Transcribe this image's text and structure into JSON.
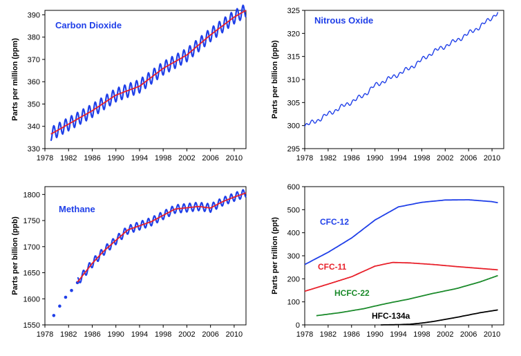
{
  "chart_data": [
    {
      "type": "line",
      "title": "Carbon Dioxide",
      "xlabel": "",
      "ylabel": "Parts per million (ppm)",
      "xlim": [
        1978,
        2012
      ],
      "ylim": [
        330,
        392
      ],
      "x_ticks": [
        1978,
        1982,
        1986,
        1990,
        1994,
        1998,
        2002,
        2006,
        2010
      ],
      "x_tick_labels": [
        "1978",
        "1982",
        "1986",
        "1990",
        "1994",
        "1998",
        "2002",
        "2006",
        "2010"
      ],
      "y_ticks": [
        330,
        340,
        350,
        360,
        370,
        380,
        390
      ],
      "y_tick_labels": [
        "330",
        "340",
        "350",
        "360",
        "370",
        "380",
        "390"
      ],
      "grid": false,
      "colors": {
        "monthly": "#1f3fe8",
        "trend": "#e8202a",
        "title": "#1f3fe8"
      },
      "seasonal_amplitude": 3,
      "series": [
        {
          "style": "monthly",
          "x": [
            1979,
            1982,
            1986,
            1990,
            1994,
            1998,
            2002,
            2006,
            2010,
            2012
          ],
          "y": [
            336.5,
            341,
            347,
            354,
            358,
            366,
            372,
            381,
            389,
            392
          ]
        },
        {
          "style": "trend",
          "x": [
            1979,
            1982,
            1986,
            1990,
            1994,
            1998,
            2002,
            2006,
            2010,
            2012
          ],
          "y": [
            336.5,
            341,
            347,
            354,
            358,
            366,
            372,
            381,
            389,
            392
          ]
        }
      ]
    },
    {
      "type": "line",
      "title": "Nitrous Oxide",
      "xlabel": "",
      "ylabel": "Parts per billion (ppb)",
      "xlim": [
        1978,
        2012
      ],
      "ylim": [
        295,
        325
      ],
      "x_ticks": [
        1978,
        1982,
        1986,
        1990,
        1994,
        1998,
        2002,
        2006,
        2010
      ],
      "x_tick_labels": [
        "1978",
        "1982",
        "1986",
        "1990",
        "1994",
        "1998",
        "2002",
        "2006",
        "2010"
      ],
      "y_ticks": [
        295,
        300,
        305,
        310,
        315,
        320,
        325
      ],
      "y_tick_labels": [
        "295",
        "300",
        "305",
        "310",
        "315",
        "320",
        "325"
      ],
      "grid": false,
      "colors": {
        "line": "#1f3fe8",
        "title": "#1f3fe8"
      },
      "series": [
        {
          "x": [
            1978,
            1980,
            1982,
            1985,
            1988,
            1990,
            1993,
            1996,
            2000,
            2004,
            2008,
            2011
          ],
          "y": [
            300,
            301,
            302.5,
            304.5,
            306.5,
            308.7,
            310.5,
            312.5,
            316,
            318.5,
            321.5,
            324.5
          ]
        }
      ]
    },
    {
      "type": "line",
      "title": "Methane",
      "xlabel": "",
      "ylabel": "Parts per billion (ppb)",
      "xlim": [
        1978,
        2012
      ],
      "ylim": [
        1550,
        1815
      ],
      "x_ticks": [
        1978,
        1982,
        1986,
        1990,
        1994,
        1998,
        2002,
        2006,
        2010
      ],
      "x_tick_labels": [
        "1978",
        "1982",
        "1986",
        "1990",
        "1994",
        "1998",
        "2002",
        "2006",
        "2010"
      ],
      "y_ticks": [
        1550,
        1600,
        1650,
        1700,
        1750,
        1800
      ],
      "y_tick_labels": [
        "1550",
        "1600",
        "1650",
        "1700",
        "1750",
        "1800"
      ],
      "grid": false,
      "colors": {
        "monthly": "#1f3fe8",
        "trend": "#e8202a",
        "points": "#1f3fe8",
        "title": "#1f3fe8"
      },
      "seasonal_amplitude": 8,
      "points": {
        "x": [
          1979.5,
          1980.5,
          1981.5,
          1982.5,
          1983.5
        ],
        "y": [
          1568,
          1586,
          1603,
          1616,
          1631
        ]
      },
      "series": [
        {
          "style": "monthly",
          "x": [
            1983.5,
            1986,
            1988,
            1990,
            1992,
            1994,
            1996,
            1998,
            2000,
            2004,
            2006,
            2008,
            2010,
            2012
          ],
          "y": [
            1632,
            1668,
            1692,
            1712,
            1732,
            1740,
            1748,
            1760,
            1772,
            1777,
            1774,
            1786,
            1795,
            1803
          ]
        },
        {
          "style": "trend",
          "x": [
            1983.5,
            1986,
            1988,
            1990,
            1992,
            1994,
            1996,
            1998,
            2000,
            2004,
            2006,
            2008,
            2010,
            2012
          ],
          "y": [
            1632,
            1668,
            1692,
            1712,
            1732,
            1740,
            1748,
            1760,
            1772,
            1777,
            1774,
            1786,
            1795,
            1803
          ]
        }
      ]
    },
    {
      "type": "line",
      "title": "",
      "xlabel": "",
      "ylabel": "Parts per trillion (ppt)",
      "xlim": [
        1978,
        2012
      ],
      "ylim": [
        0,
        600
      ],
      "x_ticks": [
        1978,
        1982,
        1986,
        1990,
        1994,
        1998,
        2002,
        2006,
        2010
      ],
      "x_tick_labels": [
        "1978",
        "1982",
        "1986",
        "1990",
        "1994",
        "1998",
        "2002",
        "2006",
        "2010"
      ],
      "y_ticks": [
        0,
        100,
        200,
        300,
        400,
        500,
        600
      ],
      "y_tick_labels": [
        "0",
        "100",
        "200",
        "300",
        "400",
        "500",
        "600"
      ],
      "grid": false,
      "series": [
        {
          "name": "CFC-12",
          "color": "#1f3fe8",
          "x": [
            1978,
            1982,
            1986,
            1990,
            1994,
            1998,
            2002,
            2006,
            2010,
            2011
          ],
          "y": [
            262,
            315,
            377,
            455,
            512,
            532,
            542,
            543,
            535,
            530
          ]
        },
        {
          "name": "CFC-11",
          "color": "#e8202a",
          "x": [
            1978,
            1982,
            1986,
            1990,
            1993,
            1996,
            2000,
            2004,
            2008,
            2011
          ],
          "y": [
            146,
            177,
            209,
            255,
            271,
            269,
            262,
            253,
            245,
            239
          ]
        },
        {
          "name": "HCFC-22",
          "color": "#1a8a2a",
          "x": [
            1980,
            1984,
            1988,
            1992,
            1996,
            2000,
            2004,
            2008,
            2011
          ],
          "y": [
            40,
            53,
            70,
            93,
            113,
            137,
            158,
            187,
            214
          ]
        },
        {
          "name": "HFC-134a",
          "color": "#000000",
          "x": [
            1991,
            1994,
            1996,
            1998,
            2000,
            2002,
            2004,
            2006,
            2008,
            2011
          ],
          "y": [
            0,
            1,
            3,
            8,
            15,
            24,
            33,
            43,
            53,
            65
          ]
        }
      ]
    }
  ]
}
